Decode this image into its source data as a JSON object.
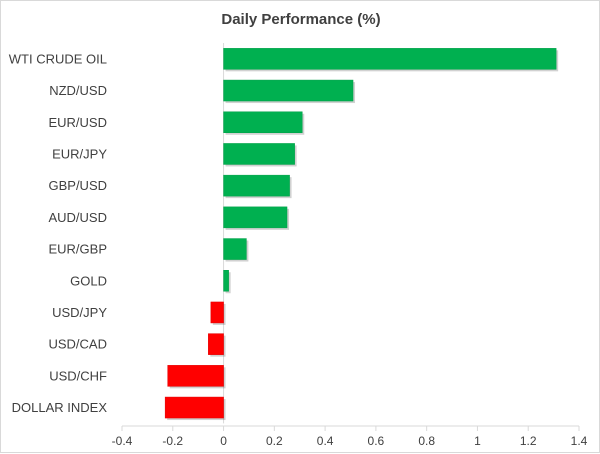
{
  "chart_data": {
    "type": "bar",
    "orientation": "horizontal",
    "title": "Daily Performance (%)",
    "xlabel": "",
    "ylabel": "",
    "categories": [
      "WTI CRUDE OIL",
      "NZD/USD",
      "EUR/USD",
      "EUR/JPY",
      "GBP/USD",
      "AUD/USD",
      "EUR/GBP",
      "GOLD",
      "USD/JPY",
      "USD/CAD",
      "USD/CHF",
      "DOLLAR INDEX"
    ],
    "values": [
      1.31,
      0.51,
      0.31,
      0.28,
      0.26,
      0.25,
      0.09,
      0.02,
      -0.05,
      -0.06,
      -0.22,
      -0.23
    ],
    "xlim": [
      -0.4,
      1.4
    ],
    "xticks": [
      "-0.4",
      "-0.2",
      "0",
      "0.2",
      "0.4",
      "0.6",
      "0.8",
      "1",
      "1.2",
      "1.4"
    ],
    "grid": false,
    "legend": "none",
    "colors": {
      "positive": "#00b050",
      "negative": "#ff0000",
      "positive_edge": "#00a048",
      "negative_edge": "#e00000"
    }
  }
}
